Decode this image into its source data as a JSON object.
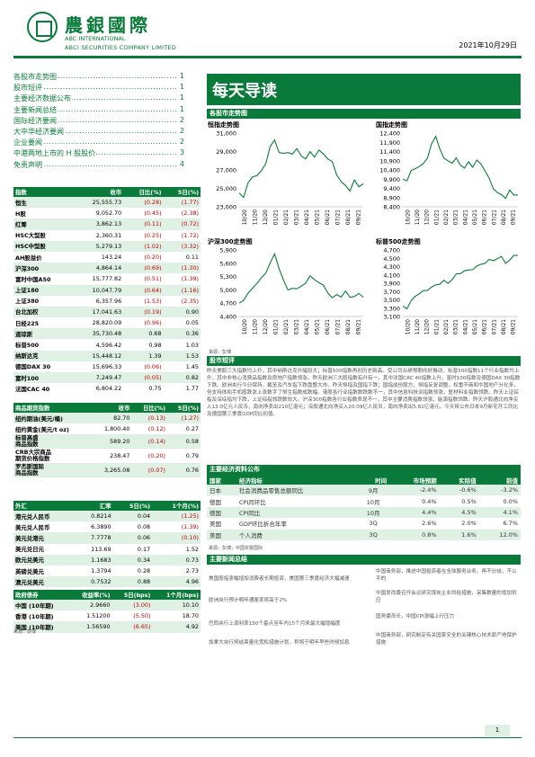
{
  "header": {
    "brand_cn": "農銀國際",
    "brand_en1": "ABC INTERNATIONAL",
    "brand_en2": "ABCI SECURITIES COMPANY LIMITED",
    "date": "2021年10月29日"
  },
  "toc": [
    {
      "label": "各股市走势图",
      "page": "1"
    },
    {
      "label": "股市短评",
      "page": "1"
    },
    {
      "label": "主要经济数据公布",
      "page": "1"
    },
    {
      "label": "主要新闻总结",
      "page": "1"
    },
    {
      "label": "国际经济要闻",
      "page": "2"
    },
    {
      "label": "大中华经济要闻",
      "page": "2"
    },
    {
      "label": "企业要闻",
      "page": "2"
    },
    {
      "label": "中港两地上市的 H 股股价",
      "page": "3"
    },
    {
      "label": "免责声明",
      "page": "4"
    }
  ],
  "indices": {
    "headers": [
      "指数",
      "收市",
      "日比(%)",
      "5日(%)"
    ],
    "rows": [
      [
        "恒生",
        "25,555.73",
        "(0.28)",
        "(1.77)"
      ],
      [
        "H股",
        "9,052.70",
        "(0.45)",
        "(2.38)"
      ],
      [
        "红筹",
        "3,862.13",
        "(0.11)",
        "(0.72)"
      ],
      [
        "HSC大型股",
        "2,360.31",
        "(0.25)",
        "(1.72)"
      ],
      [
        "HSC中型股",
        "5,279.13",
        "(1.02)",
        "(3.32)"
      ],
      [
        "AH股溢价",
        "143.24",
        "(0.20)",
        "0.11"
      ],
      [
        "沪深300",
        "4,864.14",
        "(0.69)",
        "(1.30)"
      ],
      [
        "富时中国A50",
        "15,777.82",
        "(0.51)",
        "(1.39)"
      ],
      [
        "上证180",
        "10,047.79",
        "(0.64)",
        "(1.16)"
      ],
      [
        "上证380",
        "6,357.96",
        "(1.53)",
        "(2.35)"
      ],
      [
        "台北加权",
        "17,041.63",
        "(0.19)",
        "0.90"
      ],
      [
        "日经225",
        "28,820.09",
        "(0.96)",
        "0.05"
      ],
      [
        "道琼斯",
        "35,730.48",
        "0.68",
        "0.36"
      ],
      [
        "标普500",
        "4,596.42",
        "0.98",
        "1.03"
      ],
      [
        "纳斯达克",
        "15,448.12",
        "1.39",
        "1.53"
      ],
      [
        "德国DAX 30",
        "15,696.33",
        "(0.06)",
        "1.45"
      ],
      [
        "富时100",
        "7,249.47",
        "(0.05)",
        "0.82"
      ],
      [
        "法国CAC 40",
        "6,804.22",
        "0.75",
        "1.77"
      ]
    ]
  },
  "commodities": {
    "headers": [
      "商品期货指数",
      "收市",
      "日比(%)",
      "5日(%)"
    ],
    "rows": [
      [
        "纽约期油(美元/桶)",
        "82.70",
        "(0.13)",
        "(1.27)"
      ],
      [
        "纽约黄金(美元/t oz)",
        "1,800.40",
        "(0.12)",
        "0.27"
      ],
      [
        "标普高盛\n商品指数",
        "589.20",
        "(0.14)",
        "0.58"
      ],
      [
        "CRB大宗商品\n期货价格指数",
        "238.47",
        "(0.20)",
        "0.79"
      ],
      [
        "罗杰斯国际\n商品指数",
        "3,265.08",
        "(0.07)",
        "0.76"
      ]
    ]
  },
  "fx": {
    "headers": [
      "外汇",
      "汇率",
      "5日(%)",
      "1个月(%)"
    ],
    "rows": [
      [
        "港元兑人民币",
        "0.8214",
        "0.04",
        "(1.25)"
      ],
      [
        "美元兑人民币",
        "6.3890",
        "0.08",
        "(1.39)"
      ],
      [
        "美元兑港元",
        "7.7778",
        "0.06",
        "(0.10)"
      ],
      [
        "美元兑日元",
        "113.69",
        "0.17",
        "1.52"
      ],
      [
        "欧元兑美元",
        "1.1683",
        "0.34",
        "0.73"
      ],
      [
        "英磅兑美元",
        "1.3794",
        "0.28",
        "2.73"
      ],
      [
        "澳元兑美元",
        "0.7532",
        "0.88",
        "4.96"
      ]
    ]
  },
  "bonds": {
    "headers": [
      "政府债券",
      "收益率(%)",
      "5日(bps)",
      "1个月(bps)"
    ],
    "rows": [
      [
        "中国 (10年期)",
        "2.9660",
        "(3.00)",
        "10.10"
      ],
      [
        "香港 (10年期)",
        "1.51200",
        "(5.50)",
        "18.70"
      ],
      [
        "美国 (10年期)",
        "1.56590",
        "(6.65)",
        "4.92"
      ]
    ]
  },
  "source_label": "来源：彭博",
  "main_title": "每天导读",
  "charts_section": "各股市走势图",
  "chart_data": [
    {
      "type": "line",
      "title": "恒指走势图",
      "ylim": [
        23000,
        31000
      ],
      "yticks": [
        "31,000",
        "29,000",
        "27,000",
        "25,000",
        "23,000"
      ],
      "xticks": [
        "10/20",
        "11/20",
        "12/20",
        "01/21",
        "02/21",
        "03/21",
        "04/21",
        "05/21",
        "06/21",
        "07/21",
        "08/21",
        "09/21"
      ],
      "values": [
        24500,
        24100,
        25500,
        26300,
        26400,
        26800,
        27800,
        29500,
        30200,
        29000,
        28700,
        28900,
        28800,
        29200,
        28600,
        28200,
        28900,
        28500,
        29100,
        28700,
        28300,
        27800,
        26500,
        25800,
        25200,
        24800,
        25900,
        25100,
        25600
      ]
    },
    {
      "type": "line",
      "title": "国指走势图",
      "ylim": [
        8400,
        12400
      ],
      "yticks": [
        "12,400",
        "11,900",
        "11,400",
        "10,900",
        "10,400",
        "9,900",
        "9,400",
        "8,900",
        "8,400"
      ],
      "xticks": [
        "10/20",
        "11/20",
        "12/20",
        "01/21",
        "02/21",
        "03/21",
        "04/21",
        "05/21",
        "06/21",
        "07/21",
        "08/21",
        "09/21"
      ],
      "values": [
        9900,
        9850,
        10300,
        10500,
        10600,
        10700,
        11100,
        11800,
        12200,
        11600,
        11000,
        10900,
        10800,
        11000,
        10700,
        10500,
        10800,
        10600,
        10900,
        10700,
        10400,
        9900,
        9400,
        9200,
        9000,
        8900,
        9300,
        9000,
        9100
      ]
    },
    {
      "type": "line",
      "title": "沪深300走势图",
      "ylim": [
        4400,
        5900
      ],
      "yticks": [
        "5,900",
        "5,600",
        "5,300",
        "5,000",
        "4,700",
        "4,400"
      ],
      "xticks": [
        "10/20",
        "11/20",
        "12/20",
        "01/21",
        "02/21",
        "03/21",
        "04/21",
        "05/21",
        "06/21",
        "07/21",
        "08/21",
        "09/21"
      ],
      "values": [
        4700,
        4780,
        4900,
        5050,
        5150,
        5250,
        5400,
        5600,
        5800,
        5500,
        5200,
        5000,
        5050,
        5000,
        5100,
        5150,
        5300,
        5250,
        5150,
        5100,
        4950,
        4800,
        4900,
        4850,
        4950,
        4850,
        4850,
        4900,
        4860
      ]
    },
    {
      "type": "line",
      "title": "标普500走势图",
      "ylim": [
        3100,
        4700
      ],
      "yticks": [
        "4,700",
        "4,500",
        "4,300",
        "4,100",
        "3,900",
        "3,700",
        "3,500",
        "3,300",
        "3,100"
      ],
      "xticks": [
        "10/20",
        "11/20",
        "12/20",
        "01/21",
        "02/21",
        "03/21",
        "04/21",
        "05/21",
        "06/21",
        "07/21",
        "08/21",
        "09/21"
      ],
      "values": [
        3350,
        3300,
        3450,
        3600,
        3650,
        3700,
        3750,
        3800,
        3850,
        3900,
        3950,
        3900,
        4000,
        4100,
        4150,
        4200,
        4200,
        4250,
        4300,
        4350,
        4400,
        4450,
        4450,
        4500,
        4520,
        4400,
        4450,
        4550,
        4596
      ]
    }
  ],
  "comment_section": "股市短评",
  "comment_text": "昨天美股三大指数均上升，其中纳斯达克升幅较大；标普500指数再创历史新高。受公司业绩预期向好推动，标普500指数11个行业指数均上升，其中非核心消费品指数及房地产指数领涨。昨天欧洲三大股指数有升有一，其中法国CAC 40指数上升，富时100指数及德国DAX 30指数下跌。欧洲央行今日保持，截至及汽车指下跌盘整大市。昨天恒指及国指下跌；国指成份股方，恒指反复调整。权重不商和中国地产分化多，但支持体和手机股跌涨上涨数字了恒生指数成跌幅。港股各行业指数数跌数不一，其中信息科技业指数领涨，医材料业指数领跌。昨天上证综指及深综指均下跌，上证综指领跌数较大。沪深300指数各行业指数表现不一，其中主要消费指数领涨，能源指数领跌。昨天沪股通北向净买入13.0亿元人民币，南向净卖出210亿港元；深股通北向净买入20.09亿人民币，南向净卖出5.82亿港元。今天将公布日本9月新宅开工同比及德国第三季度GDP同比初值。",
  "econ_section": "主要经济资料公布",
  "econ": {
    "headers": [
      "国家",
      "经济指标",
      "时间",
      "市场预期",
      "实际值",
      "前值"
    ],
    "rows": [
      [
        "日本",
        "社会消费品零售总额同比",
        "9月",
        "-2.4%",
        "-0.6%",
        "-3.2%"
      ],
      [
        "德国",
        "CPI月环比",
        "10月",
        "0.4%",
        "0.5%",
        "0.0%"
      ],
      [
        "德国",
        "CPI同比",
        "10月",
        "4.4%",
        "4.5%",
        "4.1%"
      ],
      [
        "美国",
        "GDP环比折合年率",
        "3Q",
        "2.6%",
        "2.0%",
        "6.7%"
      ],
      [
        "美国",
        "个人消费",
        "3Q",
        "0.8%",
        "1.6%",
        "12.0%"
      ]
    ],
    "source": "来源：彭博，中国农银国际"
  },
  "news_section": "主要新闻总结",
  "news_left": [
    "美国股指涨幅增加消费者长期投资，美国第三季度经济大幅减速",
    "欧洲央行预计明年通胀率将高于2%",
    "巴西央行上调利率150个基点至年内15个月来最大幅增幅度",
    "加拿大央行将结束量化宽松措施计划，称将于明年早些时候加息"
  ],
  "news_right": [
    "中国商务部，推进中国投资者在全球服务业务，再不分歧，不公平的",
    "中国发改委召开会议研究煤炭企业供给措施，采集数量的增加供应",
    "国务委员长，中国CPI涨幅上行压力",
    "中国商务部，研究制定有关国家安全的关键核心技术原产地保护措施"
  ],
  "page_number": "1"
}
